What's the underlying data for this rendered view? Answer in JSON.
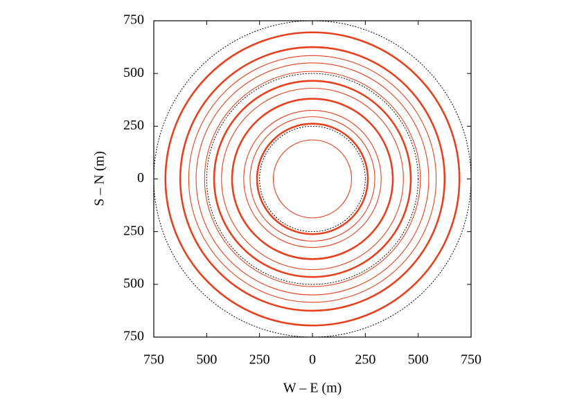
{
  "chart_data": {
    "type": "contour",
    "xlabel": "W – E (m)",
    "ylabel": "S – N (m)",
    "xlim": [
      -750,
      750
    ],
    "ylim": [
      -750,
      750
    ],
    "xticks": [
      {
        "value": -750,
        "label": "750"
      },
      {
        "value": -500,
        "label": "500"
      },
      {
        "value": -250,
        "label": "250"
      },
      0,
      250,
      500,
      750
    ],
    "yticks": [
      {
        "value": -750,
        "label": "750"
      },
      {
        "value": -500,
        "label": "500"
      },
      {
        "value": -250,
        "label": "250"
      },
      0,
      250,
      500,
      750
    ],
    "color": "#e8401c",
    "contours": [
      {
        "radius": 695,
        "bold": true
      },
      {
        "radius": 625,
        "bold": true
      },
      {
        "radius": 585,
        "bold": false
      },
      {
        "radius": 550,
        "bold": false
      },
      {
        "radius": 510,
        "bold": false
      },
      {
        "radius": 465,
        "bold": true
      },
      {
        "radius": 430,
        "bold": false
      },
      {
        "radius": 380,
        "bold": true
      },
      {
        "radius": 325,
        "bold": false
      },
      {
        "radius": 295,
        "bold": false
      },
      {
        "radius": 262,
        "bold": true
      },
      {
        "radius": 185,
        "bold": false
      }
    ],
    "reference_radii": [
      250,
      500,
      750
    ]
  }
}
